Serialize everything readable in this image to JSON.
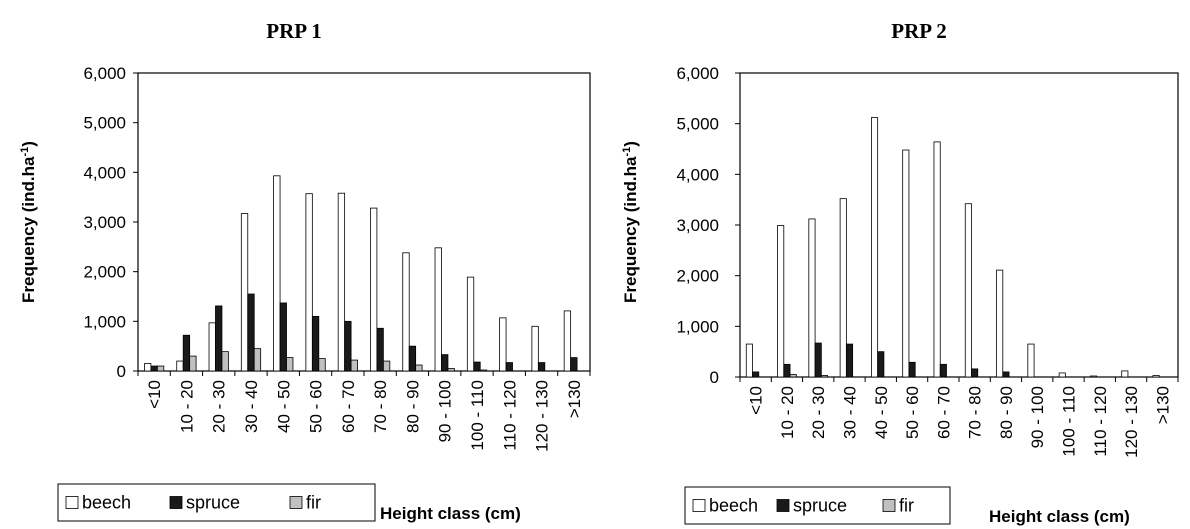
{
  "chart_data": [
    {
      "type": "bar",
      "title": "PRP 1",
      "xlabel": "Height class (cm)",
      "ylabel": "Frequency (ind.ha⁻¹)",
      "ylim": [
        0,
        6000
      ],
      "yticks": [
        "0",
        "1,000",
        "2,000",
        "3,000",
        "4,000",
        "5,000",
        "6,000"
      ],
      "categories": [
        "<10",
        "10 - 20",
        "20 - 30",
        "30 - 40",
        "40 - 50",
        "50 - 60",
        "60 - 70",
        "70 - 80",
        "80 - 90",
        "90 - 100",
        "100 - 110",
        "110 - 120",
        "120 - 130",
        ">130"
      ],
      "series": [
        {
          "name": "beech",
          "color": "#ffffff",
          "values": [
            150,
            200,
            970,
            3170,
            3930,
            3570,
            3580,
            3280,
            2380,
            2480,
            1890,
            1070,
            900,
            1210
          ]
        },
        {
          "name": "spruce",
          "color": "#1a1a1a",
          "values": [
            100,
            720,
            1310,
            1550,
            1370,
            1100,
            1000,
            860,
            500,
            330,
            180,
            170,
            170,
            270
          ]
        },
        {
          "name": "fir",
          "color": "#c0c0c0",
          "values": [
            100,
            300,
            390,
            450,
            270,
            250,
            220,
            200,
            120,
            50,
            20,
            0,
            0,
            0
          ]
        }
      ],
      "legend_position": "bottom-left",
      "grid": false
    },
    {
      "type": "bar",
      "title": "PRP 2",
      "xlabel": "Height class (cm)",
      "ylabel": "Frequency (ind.ha⁻¹)",
      "ylim": [
        0,
        6000
      ],
      "yticks": [
        "0",
        "1,000",
        "2,000",
        "3,000",
        "4,000",
        "5,000",
        "6,000"
      ],
      "categories": [
        "<10",
        "10 - 20",
        "20 - 30",
        "30 - 40",
        "40 - 50",
        "50 - 60",
        "60 - 70",
        "70 - 80",
        "80 - 90",
        "90 - 100",
        "100 - 110",
        "110 - 120",
        "120 - 130",
        ">130"
      ],
      "series": [
        {
          "name": "beech",
          "color": "#ffffff",
          "values": [
            650,
            2990,
            3120,
            3520,
            5120,
            4480,
            4640,
            3420,
            2110,
            650,
            80,
            20,
            120,
            30
          ]
        },
        {
          "name": "spruce",
          "color": "#1a1a1a",
          "values": [
            100,
            250,
            670,
            650,
            500,
            290,
            250,
            160,
            100,
            0,
            0,
            0,
            0,
            0
          ]
        },
        {
          "name": "fir",
          "color": "#c0c0c0",
          "values": [
            0,
            50,
            30,
            0,
            0,
            0,
            0,
            0,
            0,
            0,
            0,
            0,
            0,
            0
          ]
        }
      ],
      "legend_position": "bottom-left",
      "grid": false
    }
  ]
}
